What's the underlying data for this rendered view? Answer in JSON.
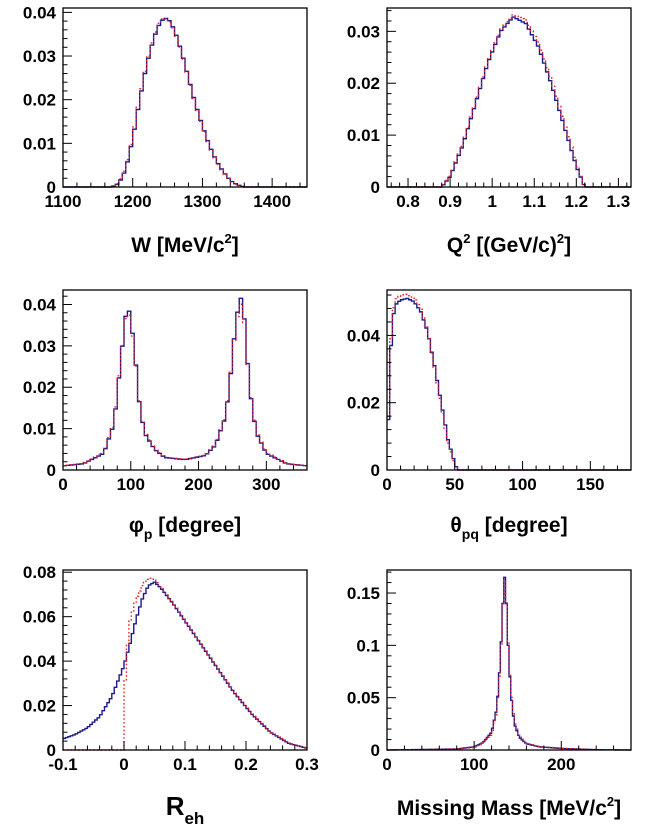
{
  "colors": {
    "solid_series": "#1a1a8c",
    "dotted_series": "#e8202a",
    "axes": "#000000"
  },
  "chart_data": [
    {
      "type": "line",
      "panel": "top-left",
      "xlabel_main": "W [MeV/c",
      "xlabel_sup": "2",
      "xlabel_tail": "]",
      "xlim": [
        1100,
        1450
      ],
      "ylim": [
        0,
        0.041
      ],
      "xticks": [
        1100,
        1200,
        1300,
        1400
      ],
      "xtick_labels": [
        "1100",
        "1200",
        "1300",
        "1400"
      ],
      "yticks": [
        0,
        0.01,
        0.02,
        0.03,
        0.04
      ],
      "ytick_labels": [
        "0",
        "0.01",
        "0.02",
        "0.03",
        "0.04"
      ],
      "bins": 70,
      "series": [
        {
          "style": "solid",
          "x": [
            1100,
            1170,
            1180,
            1190,
            1200,
            1210,
            1220,
            1230,
            1240,
            1250,
            1260,
            1270,
            1280,
            1290,
            1300,
            1310,
            1320,
            1330,
            1340,
            1350,
            1360,
            1450
          ],
          "y": [
            0,
            0,
            0.0008,
            0.004,
            0.011,
            0.02,
            0.028,
            0.034,
            0.038,
            0.0388,
            0.036,
            0.031,
            0.025,
            0.019,
            0.014,
            0.0095,
            0.006,
            0.0035,
            0.0015,
            0.0005,
            0,
            0
          ]
        },
        {
          "style": "dotted",
          "x": [
            1100,
            1170,
            1180,
            1190,
            1200,
            1210,
            1220,
            1230,
            1240,
            1250,
            1260,
            1270,
            1280,
            1290,
            1300,
            1310,
            1320,
            1330,
            1340,
            1350,
            1360,
            1450
          ],
          "y": [
            0,
            0,
            0.001,
            0.0045,
            0.0115,
            0.0205,
            0.0285,
            0.0345,
            0.0385,
            0.0385,
            0.0358,
            0.0308,
            0.0248,
            0.0188,
            0.0138,
            0.0093,
            0.0058,
            0.0033,
            0.0014,
            0.0004,
            0,
            0
          ]
        }
      ]
    },
    {
      "type": "line",
      "panel": "top-right",
      "xlabel_main": "Q",
      "xlabel_sup": "2",
      "xlabel_tail": " [(GeV/c)",
      "xlabel_sup2": "2",
      "xlabel_tail2": "]",
      "xlim": [
        0.75,
        1.33
      ],
      "ylim": [
        0,
        0.0345
      ],
      "xticks": [
        0.8,
        0.9,
        1.0,
        1.1,
        1.2,
        1.3
      ],
      "xtick_labels": [
        "0.8",
        "0.9",
        "1",
        "1.1",
        "1.2",
        "1.3"
      ],
      "yticks": [
        0,
        0.01,
        0.02,
        0.03
      ],
      "ytick_labels": [
        "0",
        "0.01",
        "0.02",
        "0.03"
      ],
      "bins": 80,
      "series": [
        {
          "style": "solid",
          "x": [
            0.75,
            0.88,
            0.9,
            0.93,
            0.96,
            0.99,
            1.02,
            1.05,
            1.08,
            1.11,
            1.14,
            1.17,
            1.2,
            1.22,
            1.33
          ],
          "y": [
            0,
            0,
            0.002,
            0.008,
            0.016,
            0.024,
            0.03,
            0.0328,
            0.0315,
            0.027,
            0.02,
            0.012,
            0.004,
            0,
            0
          ]
        },
        {
          "style": "dotted",
          "x": [
            0.75,
            0.88,
            0.9,
            0.93,
            0.96,
            0.99,
            1.02,
            1.05,
            1.08,
            1.11,
            1.14,
            1.17,
            1.2,
            1.22,
            1.33
          ],
          "y": [
            0,
            0,
            0.0022,
            0.0083,
            0.0163,
            0.0243,
            0.0303,
            0.0332,
            0.0322,
            0.0278,
            0.0208,
            0.0128,
            0.0046,
            0,
            0
          ]
        }
      ]
    },
    {
      "type": "line",
      "panel": "middle-left",
      "xlabel_main": "φ",
      "xlabel_sub": "p",
      "xlabel_tail": " [degree]",
      "xlim": [
        0,
        360
      ],
      "ylim": [
        0,
        0.0435
      ],
      "xticks": [
        0,
        100,
        200,
        300
      ],
      "xtick_labels": [
        "0",
        "100",
        "200",
        "300"
      ],
      "yticks": [
        0,
        0.01,
        0.02,
        0.03,
        0.04
      ],
      "ytick_labels": [
        "0",
        "0.01",
        "0.02",
        "0.03",
        "0.04"
      ],
      "bins": 72,
      "series": [
        {
          "style": "solid",
          "x": [
            0,
            30,
            60,
            75,
            85,
            92,
            98,
            105,
            112,
            120,
            135,
            150,
            180,
            210,
            225,
            240,
            248,
            255,
            262,
            268,
            275,
            285,
            300,
            330,
            360
          ],
          "y": [
            0.001,
            0.0015,
            0.004,
            0.011,
            0.026,
            0.037,
            0.0385,
            0.03,
            0.017,
            0.009,
            0.005,
            0.003,
            0.0025,
            0.0035,
            0.006,
            0.013,
            0.024,
            0.036,
            0.042,
            0.036,
            0.02,
            0.009,
            0.004,
            0.0015,
            0.001
          ]
        },
        {
          "style": "dotted",
          "x": [
            0,
            30,
            60,
            75,
            85,
            92,
            98,
            105,
            112,
            120,
            135,
            150,
            180,
            210,
            225,
            240,
            248,
            255,
            262,
            268,
            275,
            285,
            300,
            330,
            360
          ],
          "y": [
            0.001,
            0.0016,
            0.0042,
            0.0115,
            0.0265,
            0.0365,
            0.0375,
            0.0295,
            0.0172,
            0.0093,
            0.0052,
            0.0031,
            0.0026,
            0.0036,
            0.0062,
            0.0133,
            0.0243,
            0.0352,
            0.0405,
            0.0352,
            0.0202,
            0.0093,
            0.0042,
            0.0016,
            0.001
          ]
        }
      ]
    },
    {
      "type": "line",
      "panel": "middle-right",
      "xlabel_main": "θ",
      "xlabel_sub": "pq",
      "xlabel_tail": " [degree]",
      "xlim": [
        0,
        180
      ],
      "ylim": [
        0,
        0.0535
      ],
      "xticks": [
        0,
        50,
        100,
        150
      ],
      "xtick_labels": [
        "0",
        "50",
        "100",
        "150"
      ],
      "yticks": [
        0,
        0.02,
        0.04
      ],
      "ytick_labels": [
        "0",
        "0.02",
        "0.04"
      ],
      "bins": 90,
      "series": [
        {
          "style": "solid",
          "x": [
            0,
            2,
            4,
            6,
            10,
            15,
            20,
            25,
            30,
            35,
            40,
            45,
            50,
            52,
            180
          ],
          "y": [
            0,
            0.03,
            0.044,
            0.049,
            0.0505,
            0.051,
            0.05,
            0.047,
            0.041,
            0.031,
            0.02,
            0.009,
            0.002,
            0,
            0
          ]
        },
        {
          "style": "dotted",
          "x": [
            0,
            2,
            4,
            6,
            10,
            15,
            20,
            25,
            30,
            35,
            40,
            45,
            50,
            52,
            180
          ],
          "y": [
            0,
            0.032,
            0.046,
            0.0505,
            0.052,
            0.0522,
            0.0512,
            0.0478,
            0.0412,
            0.0305,
            0.019,
            0.008,
            0.0015,
            0,
            0
          ]
        }
      ]
    },
    {
      "type": "line",
      "panel": "bottom-left",
      "xlabel_main": "R",
      "xlabel_sub": "eh",
      "xlabel_tail": "",
      "xlim": [
        -0.1,
        0.3
      ],
      "ylim": [
        0,
        0.081
      ],
      "xticks": [
        -0.1,
        0,
        0.1,
        0.2,
        0.3
      ],
      "xtick_labels": [
        "-0.1",
        "0",
        "0.1",
        "0.2",
        "0.3"
      ],
      "yticks": [
        0,
        0.02,
        0.04,
        0.06,
        0.08
      ],
      "ytick_labels": [
        "0",
        "0.02",
        "0.04",
        "0.06",
        "0.08"
      ],
      "bins": 100,
      "series": [
        {
          "style": "solid",
          "x": [
            -0.1,
            -0.08,
            -0.06,
            -0.04,
            -0.02,
            0.0,
            0.01,
            0.02,
            0.03,
            0.04,
            0.05,
            0.06,
            0.08,
            0.1,
            0.12,
            0.15,
            0.18,
            0.21,
            0.24,
            0.27,
            0.3
          ],
          "y": [
            0.005,
            0.007,
            0.01,
            0.015,
            0.024,
            0.038,
            0.048,
            0.059,
            0.068,
            0.074,
            0.0755,
            0.073,
            0.066,
            0.058,
            0.05,
            0.038,
            0.026,
            0.016,
            0.008,
            0.003,
            0.0008
          ]
        },
        {
          "style": "dotted",
          "x": [
            -0.1,
            -0.001,
            0.0,
            0.005,
            0.01,
            0.02,
            0.03,
            0.04,
            0.05,
            0.06,
            0.08,
            0.1,
            0.12,
            0.15,
            0.18,
            0.21,
            0.24,
            0.27,
            0.3
          ],
          "y": [
            0,
            0,
            0.022,
            0.045,
            0.058,
            0.068,
            0.074,
            0.0775,
            0.0765,
            0.0735,
            0.0662,
            0.0582,
            0.0502,
            0.0382,
            0.0262,
            0.0162,
            0.0082,
            0.0031,
            0.0008
          ]
        }
      ]
    },
    {
      "type": "line",
      "panel": "bottom-right",
      "xlabel_main": "Missing Mass [MeV/c",
      "xlabel_sup": "2",
      "xlabel_tail": "]",
      "xlim": [
        0,
        280
      ],
      "ylim": [
        0,
        0.172
      ],
      "xticks": [
        0,
        100,
        200
      ],
      "xtick_labels": [
        "0",
        "100",
        "200"
      ],
      "yticks": [
        0,
        0.05,
        0.1,
        0.15
      ],
      "ytick_labels": [
        "0",
        "0.05",
        "0.1",
        "0.15"
      ],
      "bins": 140,
      "series": [
        {
          "style": "solid",
          "x": [
            0,
            80,
            100,
            110,
            120,
            126,
            130,
            133,
            135,
            137,
            139,
            142,
            146,
            152,
            160,
            175,
            200,
            240,
            280
          ],
          "y": [
            0,
            0.001,
            0.003,
            0.007,
            0.017,
            0.04,
            0.085,
            0.14,
            0.165,
            0.14,
            0.1,
            0.055,
            0.025,
            0.012,
            0.006,
            0.003,
            0.0015,
            0.0003,
            0
          ]
        },
        {
          "style": "dotted",
          "x": [
            0,
            80,
            100,
            110,
            120,
            126,
            130,
            133,
            135,
            137,
            139,
            142,
            146,
            152,
            160,
            175,
            200,
            240,
            280
          ],
          "y": [
            0,
            0.0008,
            0.0025,
            0.006,
            0.015,
            0.037,
            0.082,
            0.138,
            0.162,
            0.142,
            0.103,
            0.058,
            0.027,
            0.013,
            0.0065,
            0.0032,
            0.0016,
            0.0003,
            0
          ]
        }
      ]
    }
  ]
}
